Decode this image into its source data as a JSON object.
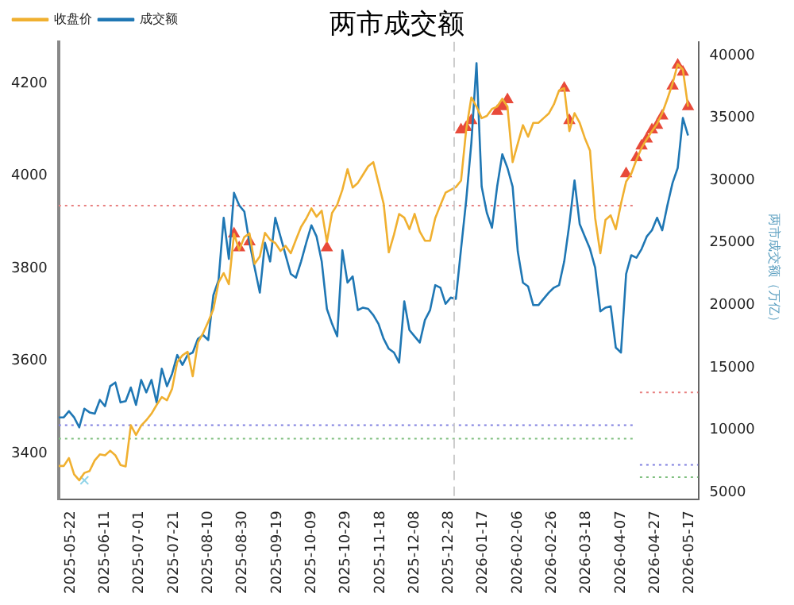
{
  "chart_data": {
    "type": "line",
    "title": "两市成交额",
    "y2label": "两市成交额（万亿）",
    "legend": "top left",
    "grid": false,
    "x": [
      "2025-05-15",
      "2025-05-18",
      "2025-05-21",
      "2025-05-24",
      "2025-05-27",
      "2025-05-30",
      "2025-06-02",
      "2025-06-05",
      "2025-06-08",
      "2025-06-11",
      "2025-06-14",
      "2025-06-17",
      "2025-06-20",
      "2025-06-23",
      "2025-06-26",
      "2025-06-29",
      "2025-07-02",
      "2025-07-05",
      "2025-07-08",
      "2025-07-11",
      "2025-07-14",
      "2025-07-17",
      "2025-07-20",
      "2025-07-23",
      "2025-07-26",
      "2025-07-29",
      "2025-08-01",
      "2025-08-04",
      "2025-08-07",
      "2025-08-10",
      "2025-08-13",
      "2025-08-16",
      "2025-08-19",
      "2025-08-22",
      "2025-08-25",
      "2025-08-28",
      "2025-08-31",
      "2025-09-03",
      "2025-09-06",
      "2025-09-09",
      "2025-09-12",
      "2025-09-15",
      "2025-09-18",
      "2025-09-21",
      "2025-09-24",
      "2025-09-27",
      "2025-09-30",
      "2025-10-03",
      "2025-10-06",
      "2025-10-09",
      "2025-10-12",
      "2025-10-15",
      "2025-10-18",
      "2025-10-21",
      "2025-10-24",
      "2025-10-27",
      "2025-10-30",
      "2025-11-02",
      "2025-11-05",
      "2025-11-08",
      "2025-11-11",
      "2025-11-14",
      "2025-11-17",
      "2025-11-20",
      "2025-11-23",
      "2025-11-26",
      "2025-11-29",
      "2025-12-02",
      "2025-12-05",
      "2025-12-08",
      "2025-12-11",
      "2025-12-14",
      "2025-12-17",
      "2025-12-20",
      "2025-12-23",
      "2025-12-26",
      "2025-12-29",
      "2026-01-01",
      "2026-01-04",
      "2026-01-07",
      "2026-01-10",
      "2026-01-13",
      "2026-01-16",
      "2026-01-19",
      "2026-01-22",
      "2026-01-25",
      "2026-01-28",
      "2026-01-31",
      "2026-02-03",
      "2026-02-06",
      "2026-02-09",
      "2026-02-12",
      "2026-02-15",
      "2026-02-18",
      "2026-02-21",
      "2026-02-24",
      "2026-02-27",
      "2026-03-02",
      "2026-03-05",
      "2026-03-08",
      "2026-03-11",
      "2026-03-14",
      "2026-03-17",
      "2026-03-20",
      "2026-03-23",
      "2026-03-26",
      "2026-03-29",
      "2026-04-01",
      "2026-04-04",
      "2026-04-07",
      "2026-04-10",
      "2026-04-13",
      "2026-04-16",
      "2026-04-19",
      "2026-04-22",
      "2026-04-25",
      "2026-04-28",
      "2026-05-01",
      "2026-05-04",
      "2026-05-07",
      "2026-05-10",
      "2026-05-13",
      "2026-05-16"
    ],
    "xlim": [
      "2025-05-15",
      "2026-05-22"
    ],
    "xticks": [
      "2025-05-22",
      "2025-06-11",
      "2025-07-01",
      "2025-07-21",
      "2025-08-10",
      "2025-08-30",
      "2025-09-19",
      "2025-10-09",
      "2025-10-29",
      "2025-11-18",
      "2025-12-08",
      "2025-12-28",
      "2026-01-17",
      "2026-02-06",
      "2026-02-26",
      "2026-03-18",
      "2026-04-07",
      "2026-04-27",
      "2026-05-17"
    ],
    "ylim": [
      3300,
      4290
    ],
    "yticks": [
      3400,
      3600,
      3800,
      4000,
      4200
    ],
    "y2lim": [
      4400,
      41100
    ],
    "y2ticks": [
      5000,
      10000,
      15000,
      20000,
      25000,
      30000,
      35000,
      40000
    ],
    "ref_lines": [
      {
        "axis": "x",
        "value": "2025-12-31",
        "color": "#cccccc",
        "line_style": "dashed"
      }
    ],
    "series": [
      {
        "name": "收盘价",
        "color": "#f0b030",
        "values": [
          3373,
          3373,
          3390,
          3355,
          3342,
          3358,
          3362,
          3385,
          3398,
          3396,
          3406,
          3396,
          3375,
          3372,
          3461,
          3440,
          3460,
          3472,
          3486,
          3505,
          3522,
          3515,
          3540,
          3598,
          3612,
          3620,
          3567,
          3640,
          3660,
          3685,
          3712,
          3770,
          3790,
          3766,
          3875,
          3840,
          3868,
          3876,
          3810,
          3826,
          3877,
          3862,
          3855,
          3838,
          3849,
          3833,
          3862,
          3890,
          3908,
          3930,
          3912,
          3925,
          3858,
          3920,
          3938,
          3970,
          4015,
          3975,
          3985,
          4003,
          4021,
          4030,
          3985,
          3940,
          3835,
          3873,
          3918,
          3910,
          3885,
          3918,
          3880,
          3860,
          3860,
          3909,
          3937,
          3964,
          3970,
          3976,
          3990,
          4100,
          4170,
          4150,
          4125,
          4130,
          4145,
          4150,
          4167,
          4150,
          4030,
          4070,
          4110,
          4085,
          4115,
          4115,
          4125,
          4135,
          4155,
          4185,
          4190,
          4097,
          4136,
          4115,
          4082,
          4055,
          3909,
          3833,
          3905,
          3915,
          3885,
          3940,
          3988,
          4005,
          4035,
          4061,
          4080,
          4097,
          4113,
          4136,
          4167,
          4200,
          4242,
          4230,
          4150
        ]
      },
      {
        "name": "成交额",
        "color": "#1f77b4",
        "axis": "y2",
        "values": [
          11000,
          11000,
          11500,
          11000,
          10200,
          11700,
          11400,
          11300,
          12400,
          11900,
          13500,
          13800,
          12200,
          12300,
          13400,
          12000,
          14000,
          13000,
          14000,
          12200,
          14900,
          13500,
          14500,
          16000,
          15200,
          16000,
          16200,
          17300,
          17600,
          17200,
          20800,
          22000,
          27000,
          23700,
          29000,
          28000,
          27500,
          25000,
          23000,
          21000,
          25000,
          23500,
          27000,
          25500,
          24000,
          22500,
          22200,
          23500,
          25000,
          26400,
          25500,
          23500,
          19700,
          18500,
          17500,
          24400,
          21800,
          22300,
          19600,
          19800,
          19700,
          19200,
          18500,
          17300,
          16500,
          16200,
          15400,
          20300,
          18000,
          17500,
          17000,
          18800,
          19600,
          21600,
          21400,
          20100,
          20600,
          20500,
          24500,
          28400,
          33000,
          39400,
          29500,
          27400,
          26200,
          29500,
          32100,
          31000,
          29500,
          24300,
          21800,
          21500,
          20000,
          20000,
          20500,
          21000,
          21400,
          21600,
          23500,
          26500,
          30000,
          26500,
          25500,
          24500,
          23000,
          19500,
          19800,
          19900,
          16600,
          16200,
          22500,
          24000,
          23800,
          24500,
          25500,
          26000,
          27000,
          26000,
          28000,
          29800,
          31000,
          35000,
          33600
        ]
      },
      {
        "type": "scatter",
        "marker": "triangle",
        "color": "#e84a3a",
        "x": [
          "2025-08-25",
          "2025-08-28",
          "2025-09-03",
          "2025-10-18",
          "2026-01-04",
          "2026-01-07",
          "2026-01-10",
          "2026-01-13",
          "2026-01-25",
          "2026-01-28",
          "2026-01-31",
          "2026-03-05",
          "2026-03-08",
          "2026-04-10",
          "2026-04-16",
          "2026-04-19",
          "2026-04-22",
          "2026-04-25",
          "2026-04-28",
          "2026-05-01",
          "2026-05-07",
          "2026-05-10",
          "2026-05-13",
          "2026-05-16"
        ],
        "values": [
          3875,
          3845,
          3858,
          3845,
          4100,
          4105,
          4120,
          null,
          4140,
          4150,
          4165,
          4190,
          4120,
          4005,
          4040,
          4065,
          4080,
          4100,
          4110,
          4130,
          4195,
          4240,
          4225,
          4150
        ]
      },
      {
        "type": "scatter",
        "marker": "cross",
        "color": "#8fd3e8",
        "x": [
          "2025-05-30"
        ],
        "values": [
          3342
        ]
      },
      {
        "line_style": "dotted",
        "color": "#e88080",
        "x": [
          "2025-05-15",
          "2026-04-16"
        ],
        "values": [
          3936,
          3936
        ]
      },
      {
        "line_style": "dotted",
        "color": "#8080e0",
        "x": [
          "2025-05-15",
          "2026-04-16"
        ],
        "values": [
          3461,
          3461
        ]
      },
      {
        "line_style": "dotted",
        "color": "#80c080",
        "x": [
          "2025-05-15",
          "2026-04-16"
        ],
        "values": [
          3432,
          3432
        ]
      },
      {
        "line_style": "dotted",
        "color": "#e88080",
        "axis": "y2",
        "x": [
          "2026-04-18",
          "2026-05-22"
        ],
        "values": [
          13000,
          13000
        ]
      },
      {
        "line_style": "dotted",
        "color": "#8080e0",
        "axis": "y2",
        "x": [
          "2026-04-18",
          "2026-05-22"
        ],
        "values": [
          7200,
          7200
        ]
      },
      {
        "line_style": "dotted",
        "color": "#80c080",
        "axis": "y2",
        "x": [
          "2026-04-18",
          "2026-05-22"
        ],
        "values": [
          6200,
          6200
        ]
      }
    ]
  }
}
